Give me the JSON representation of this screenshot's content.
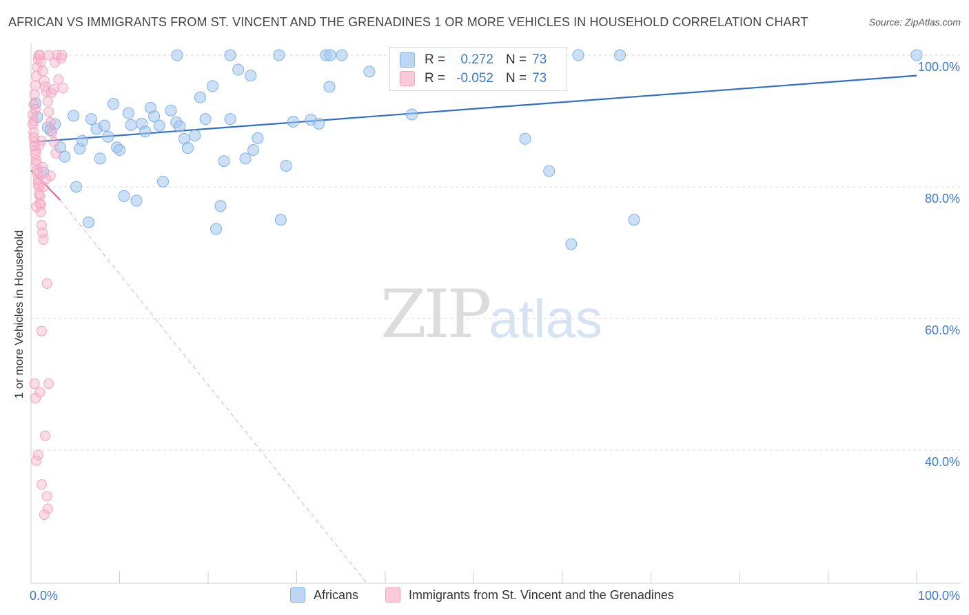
{
  "title": "AFRICAN VS IMMIGRANTS FROM ST. VINCENT AND THE GRENADINES 1 OR MORE VEHICLES IN HOUSEHOLD CORRELATION CHART",
  "source": "Source: ZipAtlas.com",
  "watermark": {
    "zip": "ZIP",
    "atlas": "atlas"
  },
  "legend_top": {
    "rows": [
      {
        "r_label": "R =",
        "r_value": "0.272",
        "n_label": "N =",
        "n_value": "73",
        "color": "#a8c8ef"
      },
      {
        "r_label": "R =",
        "r_value": "-0.052",
        "n_label": "N =",
        "n_value": "73",
        "color": "#f5b8cc"
      }
    ]
  },
  "legend_bottom": [
    "Africans",
    "Immigrants from St. Vincent and the Grenadines"
  ],
  "chart_data": {
    "type": "scatter",
    "ylabel": "1 or more Vehicles in Household",
    "xlim": [
      0,
      100
    ],
    "ylim": [
      20,
      102
    ],
    "x_tick_labels": [
      "0.0%",
      "100.0%"
    ],
    "y_ticks": [
      100,
      80,
      60,
      40
    ],
    "y_tick_labels": [
      "100.0%",
      "80.0%",
      "60.0%",
      "40.0%"
    ],
    "grid": true,
    "legend_position": "top-center",
    "series": [
      {
        "name": "Africans",
        "color": "#7fb0e8",
        "line_color": "#2f6fc4",
        "trend": {
          "x": [
            0,
            100
          ],
          "y": [
            86.8,
            96.9
          ]
        },
        "points": [
          [
            0.7,
            90.6
          ],
          [
            1.4,
            82.2
          ],
          [
            1.9,
            89.0
          ],
          [
            2.2,
            88.6
          ],
          [
            2.7,
            89.5
          ],
          [
            3.3,
            86.0
          ],
          [
            3.8,
            84.6
          ],
          [
            4.8,
            90.8
          ],
          [
            5.1,
            80.0
          ],
          [
            5.5,
            85.8
          ],
          [
            5.8,
            87.0
          ],
          [
            6.5,
            74.6
          ],
          [
            6.8,
            90.3
          ],
          [
            7.4,
            88.8
          ],
          [
            7.8,
            84.3
          ],
          [
            8.3,
            89.3
          ],
          [
            8.7,
            87.6
          ],
          [
            9.3,
            92.6
          ],
          [
            9.7,
            86.0
          ],
          [
            10.0,
            85.6
          ],
          [
            10.5,
            78.6
          ],
          [
            11.0,
            91.2
          ],
          [
            11.3,
            89.4
          ],
          [
            11.9,
            77.9
          ],
          [
            12.5,
            89.6
          ],
          [
            12.9,
            88.4
          ],
          [
            13.5,
            92.0
          ],
          [
            13.9,
            90.7
          ],
          [
            14.5,
            89.3
          ],
          [
            14.9,
            80.8
          ],
          [
            15.8,
            91.6
          ],
          [
            16.4,
            89.8
          ],
          [
            16.8,
            89.2
          ],
          [
            17.3,
            87.3
          ],
          [
            17.7,
            85.9
          ],
          [
            18.5,
            87.8
          ],
          [
            19.1,
            93.6
          ],
          [
            19.7,
            90.3
          ],
          [
            20.5,
            95.3
          ],
          [
            20.9,
            73.6
          ],
          [
            21.4,
            77.1
          ],
          [
            21.8,
            83.9
          ],
          [
            22.5,
            90.3
          ],
          [
            23.4,
            97.8
          ],
          [
            24.2,
            84.3
          ],
          [
            24.8,
            96.9
          ],
          [
            25.1,
            85.6
          ],
          [
            25.6,
            87.4
          ],
          [
            28.2,
            75.0
          ],
          [
            28.8,
            83.2
          ],
          [
            29.6,
            89.9
          ],
          [
            31.6,
            90.2
          ],
          [
            32.5,
            89.6
          ],
          [
            33.7,
            95.2
          ],
          [
            38.2,
            97.5
          ],
          [
            43.0,
            91.0
          ],
          [
            55.8,
            87.3
          ],
          [
            58.5,
            82.4
          ],
          [
            61.0,
            71.3
          ],
          [
            68.1,
            75.0
          ],
          [
            16.5,
            100
          ],
          [
            22.5,
            100
          ],
          [
            28.0,
            100
          ],
          [
            33.3,
            100
          ],
          [
            33.8,
            100
          ],
          [
            35.1,
            100
          ],
          [
            42.5,
            100
          ],
          [
            45.3,
            100
          ],
          [
            47.1,
            100
          ],
          [
            61.8,
            100
          ],
          [
            66.5,
            100
          ],
          [
            100,
            100
          ],
          [
            0.5,
            92.7
          ]
        ]
      },
      {
        "name": "Immigrants from St. Vincent and the Grenadines",
        "color": "#f7a8c0",
        "line_color": "#e05a86",
        "trend": {
          "x": [
            0,
            3.3
          ],
          "y": [
            82.5,
            78.0
          ]
        },
        "trend_extended": {
          "x": [
            3.3,
            37.8
          ],
          "y": [
            78.0,
            20.0
          ]
        },
        "points": [
          [
            0.2,
            89.5
          ],
          [
            0.3,
            88.3
          ],
          [
            0.4,
            86.9
          ],
          [
            0.5,
            85.5
          ],
          [
            0.6,
            84.0
          ],
          [
            0.7,
            82.5
          ],
          [
            0.8,
            81.0
          ],
          [
            0.9,
            80.0
          ],
          [
            1.0,
            78.6
          ],
          [
            1.1,
            77.3
          ],
          [
            0.2,
            91.0
          ],
          [
            0.3,
            92.5
          ],
          [
            0.4,
            94.0
          ],
          [
            0.5,
            95.4
          ],
          [
            0.6,
            96.8
          ],
          [
            0.7,
            98.2
          ],
          [
            0.8,
            99.4
          ],
          [
            0.9,
            100
          ],
          [
            1.1,
            99.0
          ],
          [
            1.3,
            97.6
          ],
          [
            1.5,
            96.1
          ],
          [
            1.7,
            94.5
          ],
          [
            1.9,
            93.0
          ],
          [
            2.0,
            91.4
          ],
          [
            2.2,
            89.8
          ],
          [
            2.4,
            88.3
          ],
          [
            2.6,
            86.8
          ],
          [
            2.8,
            85.1
          ],
          [
            0.3,
            87.5
          ],
          [
            0.4,
            86.2
          ],
          [
            0.5,
            85.0
          ],
          [
            0.6,
            83.5
          ],
          [
            0.7,
            82.0
          ],
          [
            0.8,
            80.5
          ],
          [
            0.9,
            79.0
          ],
          [
            1.0,
            77.5
          ],
          [
            1.1,
            76.2
          ],
          [
            1.2,
            74.2
          ],
          [
            1.3,
            73.0
          ],
          [
            1.4,
            72.0
          ],
          [
            1.8,
            65.3
          ],
          [
            1.2,
            58.1
          ],
          [
            0.4,
            50.1
          ],
          [
            2.0,
            50.1
          ],
          [
            1.0,
            48.8
          ],
          [
            0.5,
            47.9
          ],
          [
            1.6,
            42.2
          ],
          [
            0.8,
            39.3
          ],
          [
            0.6,
            38.4
          ],
          [
            1.2,
            34.8
          ],
          [
            1.8,
            33.0
          ],
          [
            1.9,
            31.1
          ],
          [
            1.5,
            30.2
          ],
          [
            2.7,
            98.9
          ],
          [
            3.1,
            96.3
          ],
          [
            3.6,
            95.0
          ],
          [
            2.3,
            94.3
          ],
          [
            1.6,
            95.2
          ],
          [
            2.9,
            100
          ],
          [
            3.4,
            99.5
          ],
          [
            1.2,
            87.0
          ],
          [
            0.9,
            86.3
          ],
          [
            2.2,
            81.7
          ],
          [
            1.7,
            81.2
          ],
          [
            1.4,
            80.0
          ],
          [
            0.6,
            77.0
          ],
          [
            0.3,
            90.0
          ],
          [
            0.5,
            91.8
          ],
          [
            1.0,
            100
          ],
          [
            2.0,
            100
          ],
          [
            3.5,
            100
          ],
          [
            2.5,
            94.8
          ],
          [
            1.3,
            83.0
          ]
        ]
      }
    ]
  }
}
